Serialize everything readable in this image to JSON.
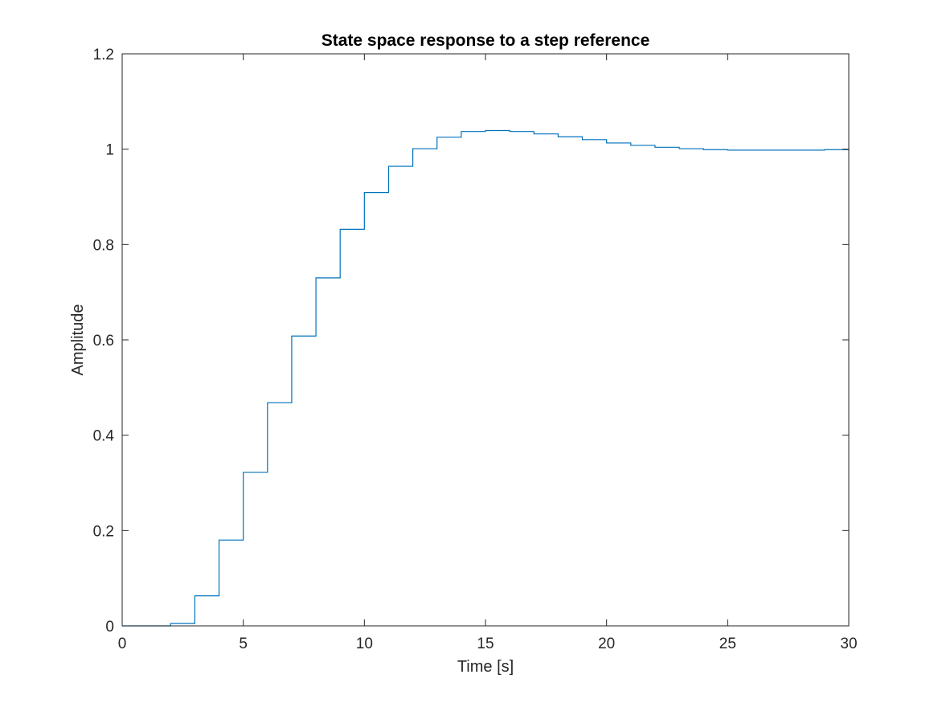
{
  "chart_data": {
    "type": "line",
    "style": "stairs",
    "title": "State space response to a step reference",
    "xlabel": "Time [s]",
    "ylabel": "Amplitude",
    "xlim": [
      0,
      30
    ],
    "ylim": [
      0,
      1.2
    ],
    "xticks": [
      0,
      5,
      10,
      15,
      20,
      25,
      30
    ],
    "yticks": [
      0,
      0.2,
      0.4,
      0.6,
      0.8,
      1,
      1.2
    ],
    "xtick_labels": [
      "0",
      "5",
      "10",
      "15",
      "20",
      "25",
      "30"
    ],
    "ytick_labels": [
      "0",
      "0.2",
      "0.4",
      "0.6",
      "0.8",
      "1",
      "1.2"
    ],
    "grid": false,
    "box": true,
    "series": [
      {
        "color": "#0072BD",
        "x": [
          0,
          1,
          2,
          3,
          4,
          5,
          6,
          7,
          8,
          9,
          10,
          11,
          12,
          13,
          14,
          15,
          16,
          17,
          18,
          19,
          20,
          21,
          22,
          23,
          24,
          25,
          26,
          27,
          28,
          29,
          30
        ],
        "values": [
          0,
          0,
          0.005,
          0.063,
          0.18,
          0.322,
          0.468,
          0.608,
          0.73,
          0.832,
          0.909,
          0.964,
          1.001,
          1.025,
          1.037,
          1.039,
          1.037,
          1.032,
          1.026,
          1.02,
          1.013,
          1.008,
          1.004,
          1.001,
          0.999,
          0.998,
          0.998,
          0.998,
          0.998,
          0.999,
          1.0
        ]
      }
    ]
  }
}
